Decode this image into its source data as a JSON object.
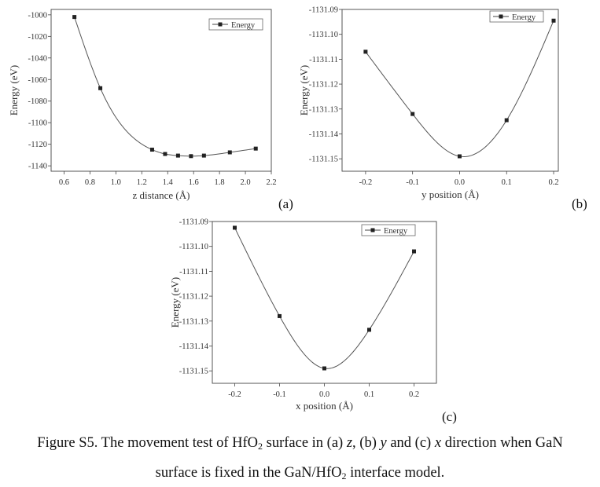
{
  "chart_data": [
    {
      "type": "line",
      "panel": "(a)",
      "xlabel": "z distance (Å)",
      "ylabel": "Energy (eV)",
      "xlim": [
        0.5,
        2.2
      ],
      "ylim": [
        -1145,
        -995
      ],
      "xticks": [
        0.6,
        0.8,
        1.0,
        1.2,
        1.4,
        1.6,
        1.8,
        2.0,
        2.2
      ],
      "xtick_labels": [
        "0.6",
        "0.8",
        "1.0",
        "1.2",
        "1.4",
        "1.6",
        "1.8",
        "2.0",
        "2.2"
      ],
      "yticks": [
        -1000,
        -1020,
        -1040,
        -1060,
        -1080,
        -1100,
        -1120,
        -1140
      ],
      "ytick_labels": [
        "-1000",
        "-1020",
        "-1040",
        "-1060",
        "-1080",
        "-1100",
        "-1120",
        "-1140"
      ],
      "legend": "top-right",
      "series": [
        {
          "name": "Energy",
          "x": [
            0.68,
            0.88,
            1.28,
            1.38,
            1.48,
            1.58,
            1.68,
            1.88,
            2.08
          ],
          "y": [
            -1002,
            -1068,
            -1125,
            -1129,
            -1130.5,
            -1131,
            -1130.5,
            -1127.5,
            -1124
          ]
        }
      ]
    },
    {
      "type": "line",
      "panel": "(b)",
      "xlabel": "y position (Å)",
      "ylabel": "Energy (eV)",
      "xlim": [
        -0.25,
        0.21
      ],
      "ylim": [
        -1131.155,
        -1131.09
      ],
      "xticks": [
        -0.2,
        -0.1,
        0.0,
        0.1,
        0.2
      ],
      "xtick_labels": [
        "-0.2",
        "-0.1",
        "0.0",
        "0.1",
        "0.2"
      ],
      "yticks": [
        -1131.09,
        -1131.1,
        -1131.11,
        -1131.12,
        -1131.13,
        -1131.14,
        -1131.15
      ],
      "ytick_labels": [
        "-1131.09",
        "-1131.10",
        "-1131.11",
        "-1131.12",
        "-1131.13",
        "-1131.14",
        "-1131.15"
      ],
      "legend": "top-right",
      "series": [
        {
          "name": "Energy",
          "x": [
            -0.2,
            -0.1,
            0.0,
            0.1,
            0.2
          ],
          "y": [
            -1131.107,
            -1131.132,
            -1131.149,
            -1131.1345,
            -1131.0945
          ]
        }
      ]
    },
    {
      "type": "line",
      "panel": "(c)",
      "xlabel": "x position (Å)",
      "ylabel": "Energy (eV)",
      "xlim": [
        -0.25,
        0.25
      ],
      "ylim": [
        -1131.155,
        -1131.09
      ],
      "xticks": [
        -0.2,
        -0.1,
        0.0,
        0.1,
        0.2
      ],
      "xtick_labels": [
        "-0.2",
        "-0.1",
        "0.0",
        "0.1",
        "0.2"
      ],
      "yticks": [
        -1131.09,
        -1131.1,
        -1131.11,
        -1131.12,
        -1131.13,
        -1131.14,
        -1131.15
      ],
      "ytick_labels": [
        "-1131.09",
        "-1131.10",
        "-1131.11",
        "-1131.12",
        "-1131.13",
        "-1131.14",
        "-1131.15"
      ],
      "legend": "top-right",
      "series": [
        {
          "name": "Energy",
          "x": [
            -0.2,
            -0.1,
            0.0,
            0.1,
            0.2
          ],
          "y": [
            -1131.0925,
            -1131.128,
            -1131.149,
            -1131.1335,
            -1131.102
          ]
        }
      ]
    }
  ],
  "caption": {
    "line1_a": "Figure S5. The movement test of HfO",
    "line1_sub": "2",
    "line1_b": " surface in (a) ",
    "z": "z",
    "line1_c": ", (b) ",
    "y": "y",
    "line1_d": " and (c) ",
    "x": "x",
    "line1_e": " direction when GaN",
    "line2_a": "surface is fixed in the GaN/HfO",
    "line2_sub": "2",
    "line2_b": " interface model."
  }
}
